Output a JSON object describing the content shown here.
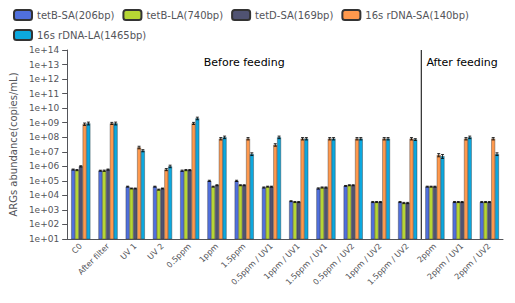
{
  "chart_data": {
    "type": "bar",
    "ylabel": "ARGs abundance(copies/mL)",
    "categories": [
      "C0",
      "After filter",
      "UV 1",
      "UV 2",
      "0.5ppm",
      "1ppm",
      "1.5ppm",
      "0.5ppm / UV1",
      "1ppm / UV1",
      "1.5ppm / UV1",
      "0.5ppm / UV2",
      "1ppm / UV2",
      "1.5ppm / UV2",
      "2ppm",
      "2ppm / UV1",
      "2ppm / UV2"
    ],
    "series": [
      {
        "name": "tetB-SA(206bp)",
        "values": [
          600000.0,
          500000.0,
          40000.0,
          40000.0,
          500000.0,
          100000.0,
          100000.0,
          35000.0,
          4000.0,
          30000.0,
          45000.0,
          3500.0,
          3500.0,
          40000.0,
          3500.0,
          3500.0
        ],
        "errors": [
          50000.0,
          40000.0,
          3000.0,
          3000.0,
          50000.0,
          10000.0,
          10000.0,
          3000.0,
          300.0,
          3000.0,
          3000.0,
          300.0,
          300.0,
          3000.0,
          300.0,
          300.0
        ]
      },
      {
        "name": "tetB-LA(740bp)",
        "values": [
          550000.0,
          500000.0,
          30000.0,
          25000.0,
          550000.0,
          40000.0,
          50000.0,
          40000.0,
          3500.0,
          35000.0,
          50000.0,
          3500.0,
          3000.0,
          40000.0,
          3500.0,
          3500.0
        ],
        "errors": [
          50000.0,
          50000.0,
          2000.0,
          2000.0,
          50000.0,
          3000.0,
          4000.0,
          3000.0,
          300.0,
          3000.0,
          4000.0,
          300.0,
          300.0,
          3000.0,
          300.0,
          300.0
        ]
      },
      {
        "name": "tetD-SA(169bp)",
        "values": [
          1000000.0,
          600000.0,
          30000.0,
          30000.0,
          550000.0,
          50000.0,
          50000.0,
          40000.0,
          3500.0,
          35000.0,
          50000.0,
          3500.0,
          3000.0,
          40000.0,
          3500.0,
          3500.0
        ],
        "errors": [
          100000.0,
          50000.0,
          2000.0,
          2000.0,
          50000.0,
          4000.0,
          4000.0,
          3000.0,
          300.0,
          3000.0,
          4000.0,
          300.0,
          300.0,
          3000.0,
          300.0,
          300.0
        ]
      },
      {
        "name": "16s rDNA-SA(140bp)",
        "values": [
          800000000.0,
          900000000.0,
          20000000.0,
          600000.0,
          900000000.0,
          80000000.0,
          80000000.0,
          30000000.0,
          80000000.0,
          80000000.0,
          80000000.0,
          80000000.0,
          80000000.0,
          6000000.0,
          80000000.0,
          80000000.0
        ],
        "errors": [
          150000000.0,
          150000000.0,
          4000000.0,
          100000.0,
          150000000.0,
          15000000.0,
          15000000.0,
          6000000.0,
          15000000.0,
          15000000.0,
          15000000.0,
          15000000.0,
          15000000.0,
          1500000.0,
          15000000.0,
          15000000.0
        ]
      },
      {
        "name": "16s rDNA-LA(1465bp)",
        "values": [
          900000000.0,
          900000000.0,
          12000000.0,
          1000000.0,
          2000000000.0,
          100000000.0,
          7000000.0,
          100000000.0,
          80000000.0,
          80000000.0,
          80000000.0,
          80000000.0,
          70000000.0,
          5000000.0,
          100000000.0,
          7000000.0
        ],
        "errors": [
          200000000.0,
          200000000.0,
          2000000.0,
          200000.0,
          400000000.0,
          20000000.0,
          1500000.0,
          20000000.0,
          15000000.0,
          15000000.0,
          15000000.0,
          15000000.0,
          10000000.0,
          1500000.0,
          20000000.0,
          1500000.0
        ]
      }
    ],
    "log": "y",
    "ylim": [
      10.0,
      100000000000000.0
    ],
    "yticks": [
      {
        "value": 10.0,
        "label": "1e+01"
      },
      {
        "value": 100.0,
        "label": "1e+02"
      },
      {
        "value": 1000.0,
        "label": "1e+03"
      },
      {
        "value": 10000.0,
        "label": "1e+04"
      },
      {
        "value": 100000.0,
        "label": "1e+05"
      },
      {
        "value": 1000000.0,
        "label": "1e+06"
      },
      {
        "value": 10000000.0,
        "label": "1e+07"
      },
      {
        "value": 100000000.0,
        "label": "1e+08"
      },
      {
        "value": 1000000000.0,
        "label": "1e+09"
      },
      {
        "value": 10000000000.0,
        "label": "1e+10"
      },
      {
        "value": 100000000000.0,
        "label": "1e+11"
      },
      {
        "value": 1000000000000.0,
        "label": "1e+12"
      },
      {
        "value": 10000000000000.0,
        "label": "1e+13"
      },
      {
        "value": 100000000000000.0,
        "label": "1e+14"
      }
    ],
    "annotations": [
      {
        "text": "Before feeding",
        "from": "C0",
        "to": "1.5ppm / UV2"
      },
      {
        "text": "After feeding",
        "from": "2ppm",
        "to": "2ppm / UV2"
      }
    ],
    "grid": false,
    "legend": "upper left"
  }
}
